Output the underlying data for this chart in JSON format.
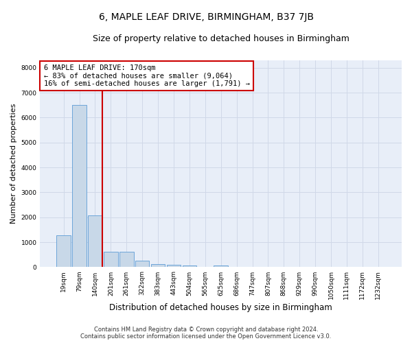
{
  "title": "6, MAPLE LEAF DRIVE, BIRMINGHAM, B37 7JB",
  "subtitle": "Size of property relative to detached houses in Birmingham",
  "xlabel": "Distribution of detached houses by size in Birmingham",
  "ylabel": "Number of detached properties",
  "categories": [
    "19sqm",
    "79sqm",
    "140sqm",
    "201sqm",
    "261sqm",
    "322sqm",
    "383sqm",
    "443sqm",
    "504sqm",
    "565sqm",
    "625sqm",
    "686sqm",
    "747sqm",
    "807sqm",
    "868sqm",
    "929sqm",
    "990sqm",
    "1050sqm",
    "1111sqm",
    "1172sqm",
    "1232sqm"
  ],
  "values": [
    1280,
    6500,
    2070,
    630,
    630,
    250,
    130,
    95,
    70,
    0,
    75,
    0,
    0,
    0,
    0,
    0,
    0,
    0,
    0,
    0,
    0
  ],
  "bar_color": "#c8d8e8",
  "bar_edge_color": "#5b9bd5",
  "vline_color": "#cc0000",
  "vline_pos": 2.45,
  "annotation_text": "6 MAPLE LEAF DRIVE: 170sqm\n← 83% of detached houses are smaller (9,064)\n16% of semi-detached houses are larger (1,791) →",
  "annotation_box_facecolor": "#ffffff",
  "annotation_box_edgecolor": "#cc0000",
  "ylim": [
    0,
    8300
  ],
  "yticks": [
    0,
    1000,
    2000,
    3000,
    4000,
    5000,
    6000,
    7000,
    8000
  ],
  "bg_color": "#e8eef8",
  "grid_color": "#d0d8e8",
  "footer_line1": "Contains HM Land Registry data © Crown copyright and database right 2024.",
  "footer_line2": "Contains public sector information licensed under the Open Government Licence v3.0.",
  "title_fontsize": 10,
  "subtitle_fontsize": 9,
  "tick_fontsize": 6.5,
  "ylabel_fontsize": 8,
  "xlabel_fontsize": 8.5,
  "annot_fontsize": 7.5
}
